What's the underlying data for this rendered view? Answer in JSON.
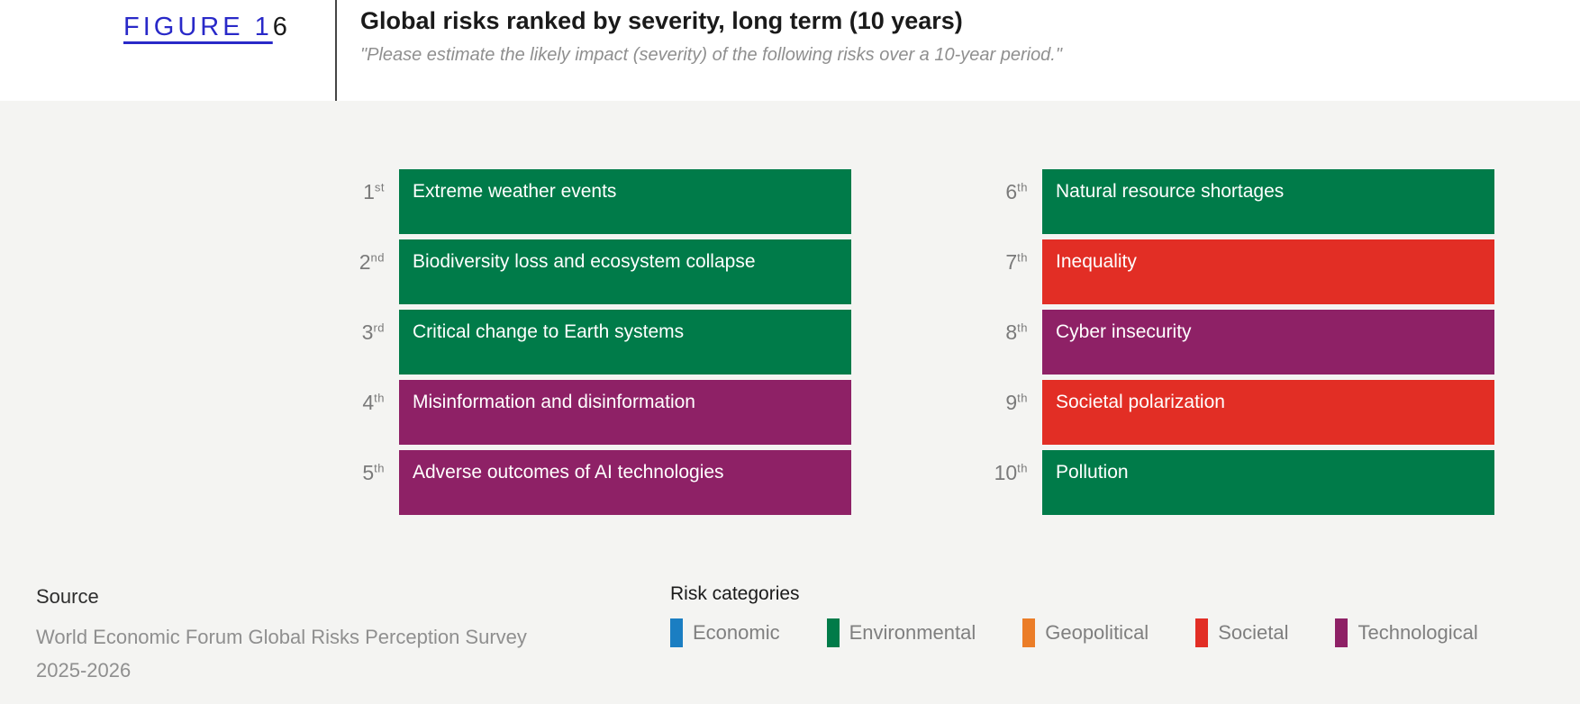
{
  "figure": {
    "link_text": "FIGURE 1",
    "suffix": "6"
  },
  "header": {
    "title": "Global risks ranked by severity, long term (10 years)",
    "subtitle": "\"Please estimate the likely impact (severity) of the following risks over a 10-year period.\""
  },
  "source": {
    "heading": "Source",
    "lines": [
      "World Economic Forum Global Risks Perception Survey",
      "2025-2026"
    ]
  },
  "chart_data": {
    "type": "bar",
    "title": "Global risks ranked by severity, long term (10 years)",
    "subtitle": "\"Please estimate the likely impact (severity) of the following risks over a 10-year period.\"",
    "layout": "two-column ranked list, equal-length category-colored bars, ranks 1-5 left column, 6-10 right column",
    "category_colors": {
      "Economic": "#1B7EC2",
      "Environmental": "#007B49",
      "Geopolitical": "#EB7D28",
      "Societal": "#E22E25",
      "Technological": "#8E2166"
    },
    "ranking": [
      {
        "rank": "1st",
        "rank_num": "1",
        "rank_suffix": "st",
        "risk": "Extreme weather events",
        "category": "Environmental",
        "color": "#007B49"
      },
      {
        "rank": "2nd",
        "rank_num": "2",
        "rank_suffix": "nd",
        "risk": "Biodiversity loss and ecosystem collapse",
        "category": "Environmental",
        "color": "#007B49"
      },
      {
        "rank": "3rd",
        "rank_num": "3",
        "rank_suffix": "rd",
        "risk": "Critical change to Earth systems",
        "category": "Environmental",
        "color": "#007B49"
      },
      {
        "rank": "4th",
        "rank_num": "4",
        "rank_suffix": "th",
        "risk": "Misinformation and disinformation",
        "category": "Technological",
        "color": "#8E2166"
      },
      {
        "rank": "5th",
        "rank_num": "5",
        "rank_suffix": "th",
        "risk": "Adverse outcomes of AI technologies",
        "category": "Technological",
        "color": "#8E2166"
      },
      {
        "rank": "6th",
        "rank_num": "6",
        "rank_suffix": "th",
        "risk": "Natural resource shortages",
        "category": "Environmental",
        "color": "#007B49"
      },
      {
        "rank": "7th",
        "rank_num": "7",
        "rank_suffix": "th",
        "risk": "Inequality",
        "category": "Societal",
        "color": "#E22E25"
      },
      {
        "rank": "8th",
        "rank_num": "8",
        "rank_suffix": "th",
        "risk": "Cyber insecurity",
        "category": "Technological",
        "color": "#8E2166"
      },
      {
        "rank": "9th",
        "rank_num": "9",
        "rank_suffix": "th",
        "risk": "Societal polarization",
        "category": "Societal",
        "color": "#E22E25"
      },
      {
        "rank": "10th",
        "rank_num": "10",
        "rank_suffix": "th",
        "risk": "Pollution",
        "category": "Environmental",
        "color": "#007B49"
      }
    ],
    "legend": {
      "title": "Risk categories",
      "position": "bottom",
      "entries": [
        {
          "label": "Economic",
          "color": "#1B7EC2"
        },
        {
          "label": "Environmental",
          "color": "#007B49"
        },
        {
          "label": "Geopolitical",
          "color": "#EB7D28"
        },
        {
          "label": "Societal",
          "color": "#E22E25"
        },
        {
          "label": "Technological",
          "color": "#8E2166"
        }
      ]
    },
    "source": "World Economic Forum Global Risks Perception Survey 2025-2026"
  }
}
